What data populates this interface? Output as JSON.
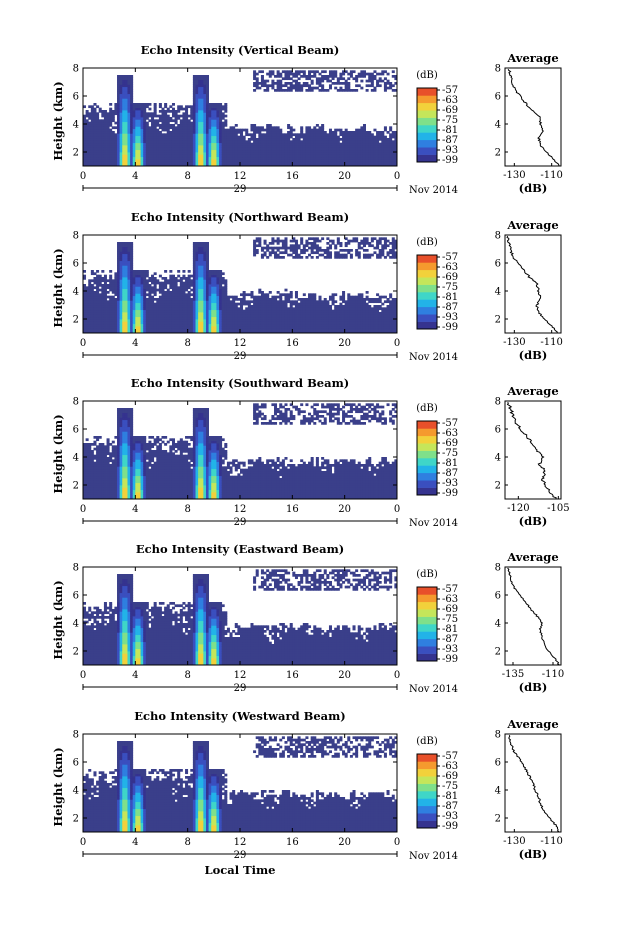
{
  "chart_data": [
    {
      "type": "heatmap",
      "title": "Echo Intensity (Vertical Beam)",
      "ylabel": "Height (km)",
      "ylim": [
        1,
        8
      ],
      "yticks": [
        "2",
        "4",
        "6",
        "8"
      ],
      "xticks": [
        "0",
        "4",
        "8",
        "12",
        "16",
        "20",
        "0"
      ],
      "date_label": "29",
      "period_label": "Nov 2014",
      "colorbar": {
        "unit": "(dB)",
        "labels": [
          "-57",
          "-63",
          "-69",
          "-75",
          "-81",
          "-87",
          "-93",
          "-99"
        ]
      },
      "average": {
        "title": "Average",
        "xlabel": "(dB)",
        "xticks": [
          "-130",
          "-110"
        ],
        "yticks": [
          "2",
          "4",
          "6",
          "8"
        ],
        "xlim": [
          -135,
          -105
        ],
        "heights": [
          1,
          1.5,
          2,
          2.5,
          3,
          3.5,
          4,
          4.5,
          5,
          5.5,
          6,
          6.5,
          7,
          7.5,
          8
        ],
        "values": [
          -106,
          -109,
          -113,
          -116,
          -117,
          -115,
          -116,
          -116,
          -121,
          -124,
          -127,
          -130,
          -131,
          -132,
          -133
        ]
      }
    },
    {
      "type": "heatmap",
      "title": "Echo Intensity (Northward Beam)",
      "ylabel": "Height (km)",
      "ylim": [
        1,
        8
      ],
      "yticks": [
        "2",
        "4",
        "6",
        "8"
      ],
      "xticks": [
        "0",
        "4",
        "8",
        "12",
        "16",
        "20",
        "0"
      ],
      "date_label": "29",
      "period_label": "Nov 2014",
      "colorbar": {
        "unit": "(dB)",
        "labels": [
          "-57",
          "-63",
          "-69",
          "-75",
          "-81",
          "-87",
          "-93",
          "-99"
        ]
      },
      "average": {
        "title": "Average",
        "xlabel": "(dB)",
        "xticks": [
          "-130",
          "-110"
        ],
        "yticks": [
          "2",
          "4",
          "6",
          "8"
        ],
        "xlim": [
          -135,
          -105
        ],
        "heights": [
          1,
          1.5,
          2,
          2.5,
          3,
          3.5,
          4,
          4.5,
          5,
          5.5,
          6,
          6.5,
          7,
          7.5,
          8
        ],
        "values": [
          -107,
          -110,
          -114,
          -117,
          -118,
          -116,
          -117,
          -118,
          -122,
          -125,
          -128,
          -131,
          -132,
          -133,
          -134
        ]
      }
    },
    {
      "type": "heatmap",
      "title": "Echo Intensity (Southward Beam)",
      "ylabel": "Height (km)",
      "ylim": [
        1,
        8
      ],
      "yticks": [
        "2",
        "4",
        "6",
        "8"
      ],
      "xticks": [
        "0",
        "4",
        "8",
        "12",
        "16",
        "20",
        "0"
      ],
      "date_label": "29",
      "period_label": "Nov 2014",
      "colorbar": {
        "unit": "(dB)",
        "labels": [
          "-57",
          "-63",
          "-69",
          "-75",
          "-81",
          "-87",
          "-93",
          "-99"
        ]
      },
      "average": {
        "title": "Average",
        "xlabel": "(dB)",
        "xticks": [
          "-120",
          "-105"
        ],
        "yticks": [
          "2",
          "4",
          "6",
          "8"
        ],
        "xlim": [
          -125,
          -104
        ],
        "heights": [
          1,
          1.5,
          2,
          2.5,
          3,
          3.5,
          4,
          4.5,
          5,
          5.5,
          6,
          6.5,
          7,
          7.5,
          8
        ],
        "values": [
          -106,
          -108,
          -110,
          -111,
          -110,
          -112,
          -111,
          -113,
          -115,
          -117,
          -119,
          -121,
          -122,
          -123,
          -124
        ]
      }
    },
    {
      "type": "heatmap",
      "title": "Echo Intensity (Eastward Beam)",
      "ylabel": "Height (km)",
      "ylim": [
        1,
        8
      ],
      "yticks": [
        "2",
        "4",
        "6",
        "8"
      ],
      "xticks": [
        "0",
        "4",
        "8",
        "12",
        "16",
        "20",
        "0"
      ],
      "date_label": "29",
      "period_label": "Nov 2014",
      "colorbar": {
        "unit": "(dB)",
        "labels": [
          "-57",
          "-63",
          "-69",
          "-75",
          "-81",
          "-87",
          "-93",
          "-99"
        ]
      },
      "average": {
        "title": "Average",
        "xlabel": "(dB)",
        "xticks": [
          "-135",
          "-110"
        ],
        "yticks": [
          "2",
          "4",
          "6",
          "8"
        ],
        "xlim": [
          -140,
          -105
        ],
        "heights": [
          1,
          1.5,
          2,
          2.5,
          3,
          3.5,
          4,
          4.5,
          5,
          5.5,
          6,
          6.5,
          7,
          7.5,
          8
        ],
        "values": [
          -106,
          -109,
          -113,
          -115,
          -117,
          -118,
          -117,
          -120,
          -124,
          -127,
          -131,
          -134,
          -136,
          -137,
          -138
        ]
      }
    },
    {
      "type": "heatmap",
      "title": "Echo Intensity (Westward Beam)",
      "ylabel": "Height (km)",
      "ylim": [
        1,
        8
      ],
      "yticks": [
        "2",
        "4",
        "6",
        "8"
      ],
      "xticks": [
        "0",
        "4",
        "8",
        "12",
        "16",
        "20",
        "0"
      ],
      "date_label": "29",
      "period_label": "Nov 2014",
      "xlabel": "Local Time",
      "colorbar": {
        "unit": "(dB)",
        "labels": [
          "-57",
          "-63",
          "-69",
          "-75",
          "-81",
          "-87",
          "-93",
          "-99"
        ]
      },
      "average": {
        "title": "Average",
        "xlabel": "(dB)",
        "xticks": [
          "-130",
          "-110"
        ],
        "yticks": [
          "2",
          "4",
          "6",
          "8"
        ],
        "xlim": [
          -135,
          -105
        ],
        "heights": [
          1,
          1.5,
          2,
          2.5,
          3,
          3.5,
          4,
          4.5,
          5,
          5.5,
          6,
          6.5,
          7,
          7.5,
          8
        ],
        "values": [
          -106,
          -108,
          -111,
          -114,
          -116,
          -117,
          -119,
          -120,
          -122,
          -124,
          -126,
          -129,
          -131,
          -132,
          -133
        ]
      }
    }
  ],
  "colors": {
    "background": "#ffffff",
    "heatmap_base": "#3a3f8a",
    "colormap": [
      "#35338f",
      "#3a4fbf",
      "#2f7fe0",
      "#22b3e8",
      "#3fd6c8",
      "#7fe08a",
      "#c5e65a",
      "#f2d13b",
      "#f59a2e",
      "#e8502a"
    ]
  }
}
